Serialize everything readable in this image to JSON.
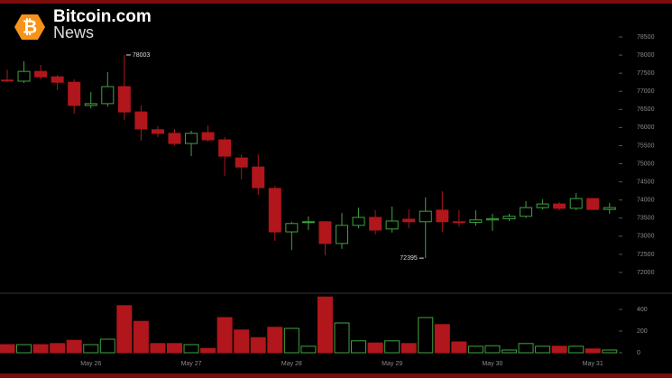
{
  "logo": {
    "title": "Bitcoin.com",
    "subtitle": "News"
  },
  "chart_data": {
    "type": "candlestick",
    "categories": [
      null,
      null,
      null,
      null,
      null,
      "May 26",
      null,
      null,
      null,
      null,
      null,
      "May 27",
      null,
      null,
      null,
      null,
      null,
      "May 28",
      null,
      null,
      null,
      null,
      null,
      "May 29",
      null,
      null,
      null,
      null,
      null,
      "May 30",
      null,
      null,
      null,
      null,
      null,
      "May 31",
      null
    ],
    "open": [
      77310,
      77280,
      77550,
      77400,
      77250,
      76610,
      76660,
      77130,
      76430,
      75940,
      75840,
      75560,
      75860,
      75660,
      75160,
      74910,
      74320,
      73120,
      73380,
      73400,
      72800,
      73300,
      73520,
      73200,
      73470,
      73400,
      73720,
      73400,
      73380,
      73450,
      73480,
      73550,
      73790,
      73890,
      73770,
      74040,
      73740
    ],
    "high": [
      77600,
      77830,
      77730,
      77450,
      77330,
      76980,
      77530,
      78003,
      76610,
      76040,
      75960,
      75910,
      76060,
      75740,
      75260,
      75260,
      74390,
      73400,
      73550,
      73420,
      73640,
      73790,
      73720,
      73820,
      73740,
      74070,
      74240,
      73720,
      73720,
      73620,
      73620,
      73970,
      74020,
      73940,
      74190,
      74040,
      73920
    ],
    "low": [
      77250,
      77230,
      77330,
      77030,
      76380,
      76530,
      76580,
      76210,
      75640,
      75740,
      75510,
      75210,
      75610,
      74670,
      74570,
      74140,
      72870,
      72620,
      73170,
      72470,
      72650,
      73220,
      73050,
      73100,
      73220,
      72395,
      73120,
      73270,
      73290,
      73150,
      73420,
      73500,
      73740,
      73720,
      73720,
      73720,
      73620
    ],
    "close": [
      77290,
      77550,
      77400,
      77250,
      76610,
      76660,
      77130,
      76430,
      75960,
      75840,
      75560,
      75840,
      75660,
      75210,
      74910,
      74340,
      73120,
      73350,
      73400,
      72800,
      73300,
      73520,
      73170,
      73420,
      73400,
      73690,
      73400,
      73380,
      73450,
      73480,
      73550,
      73790,
      73890,
      73770,
      74040,
      73740,
      73790
    ],
    "volume": [
      75,
      75,
      75,
      85,
      115,
      75,
      125,
      435,
      290,
      85,
      85,
      75,
      40,
      325,
      210,
      140,
      235,
      225,
      60,
      515,
      275,
      110,
      90,
      110,
      85,
      325,
      260,
      100,
      60,
      65,
      25,
      85,
      60,
      60,
      60,
      35,
      25
    ],
    "up_color": "#3fa33f",
    "down_color": "#b0161b",
    "ylim": [
      72000,
      78500
    ],
    "yticks": [
      72000,
      72500,
      73000,
      73500,
      74000,
      74500,
      75000,
      75500,
      76000,
      76500,
      77000,
      77500,
      78000,
      78500
    ],
    "volume_ylim": [
      0,
      540
    ],
    "volume_yticks": [
      0,
      200,
      400
    ]
  }
}
